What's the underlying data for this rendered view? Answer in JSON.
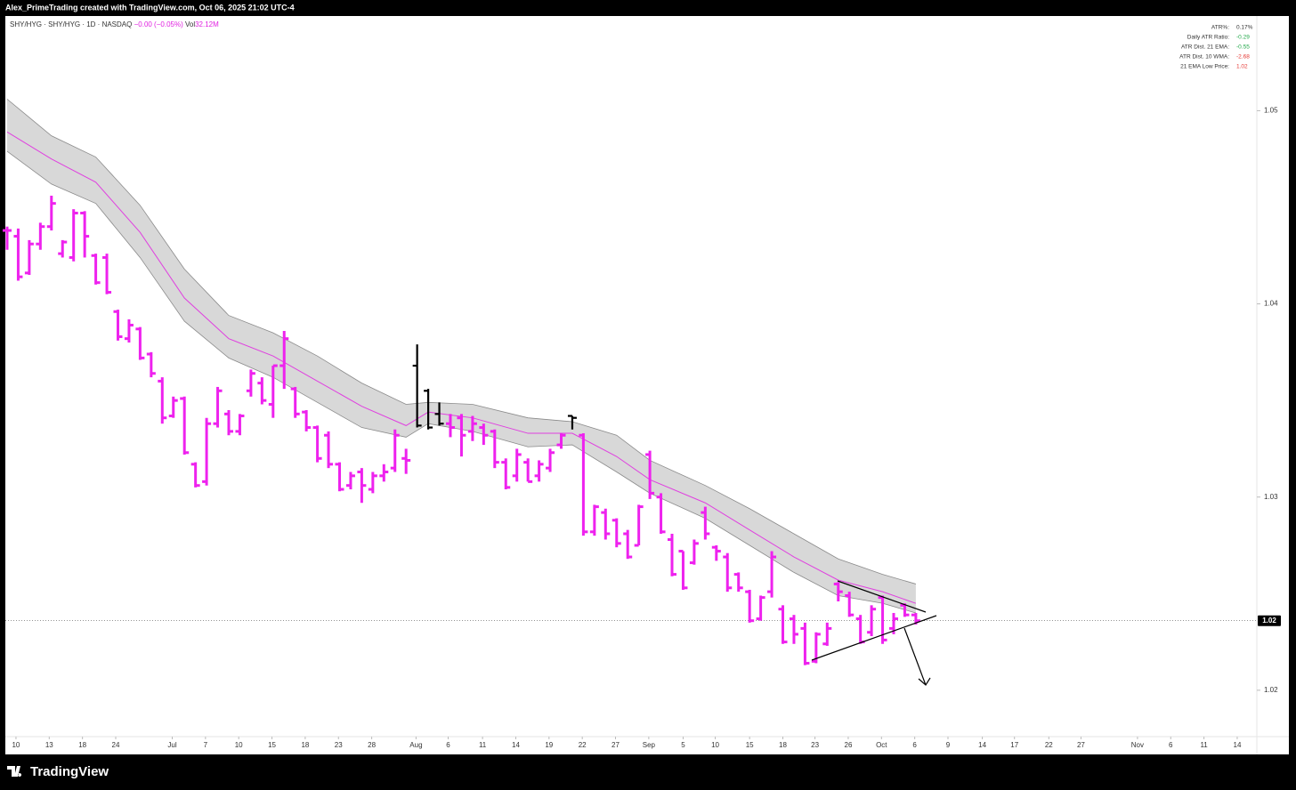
{
  "credit": "Alex_PrimeTrading created with TradingView.com, Oct 06, 2025 21:02 UTC-4",
  "brand": "TradingView",
  "chart_data": {
    "type": "ohlc",
    "symbol": "SHY/HYG · SHY/HYG · 1D · NASDAQ",
    "change": "−0.00 (−0.05%)",
    "volume_label": "Vol",
    "volume": "32.12M",
    "x": [
      0,
      1,
      2,
      3,
      4,
      5,
      6,
      7,
      8,
      9,
      10,
      11,
      12,
      13,
      14,
      15,
      16,
      17,
      18,
      19,
      20,
      21,
      22,
      23,
      24,
      25,
      26,
      27,
      28,
      29,
      30,
      31,
      32,
      33,
      34,
      35,
      36,
      37,
      38,
      39,
      40,
      41,
      42,
      43,
      44,
      45,
      46,
      47,
      48,
      49,
      50,
      51,
      52,
      53,
      54,
      55,
      56,
      57,
      58,
      59,
      60,
      61,
      62,
      63,
      64,
      65,
      66,
      67,
      68,
      69,
      70,
      71,
      72,
      73,
      74,
      75,
      76,
      77,
      78,
      79,
      80,
      81,
      82
    ],
    "open": [
      1.0438,
      1.0435,
      1.0416,
      1.0431,
      1.044,
      1.0426,
      1.0424,
      1.0447,
      1.0425,
      1.0424,
      1.0396,
      1.0382,
      1.0387,
      1.0374,
      1.036,
      1.0342,
      1.0351,
      1.0317,
      1.0308,
      1.0338,
      1.0343,
      1.0334,
      1.0355,
      1.0359,
      1.0348,
      1.0368,
      1.0356,
      1.0344,
      1.0336,
      1.0332,
      1.0317,
      1.0306,
      1.0313,
      1.0304,
      1.0311,
      1.0315,
      1.032,
      1.0368,
      1.0355,
      1.0343,
      1.0338,
      1.0341,
      1.0334,
      1.0336,
      1.0334,
      1.0318,
      1.0311,
      1.0318,
      1.0311,
      1.0315,
      1.0327,
      1.0342,
      1.0332,
      1.0282,
      1.0292,
      1.0288,
      1.0281,
      1.0275,
      1.0322,
      1.03,
      1.0278,
      1.0272,
      1.0266,
      1.0292,
      1.0274,
      1.0269,
      1.026,
      1.0251,
      1.0237,
      1.0251,
      1.0242,
      1.0237,
      1.0232,
      1.0215,
      1.0224,
      1.0255,
      1.0249,
      1.0237,
      1.023,
      1.0248,
      1.0232,
      1.0244,
      1.0239
    ],
    "high": [
      1.044,
      1.0439,
      1.0433,
      1.0442,
      1.0456,
      1.0433,
      1.0449,
      1.0448,
      1.0426,
      1.0426,
      1.0397,
      1.0392,
      1.0388,
      1.0375,
      1.0362,
      1.0352,
      1.0352,
      1.0318,
      1.0341,
      1.0357,
      1.0345,
      1.0343,
      1.0366,
      1.0362,
      1.0368,
      1.0386,
      1.0357,
      1.0345,
      1.0337,
      1.0334,
      1.0318,
      1.0313,
      1.0315,
      1.0313,
      1.0317,
      1.0335,
      1.0325,
      1.0379,
      1.0356,
      1.0349,
      1.0343,
      1.0343,
      1.0342,
      1.0338,
      1.0335,
      1.032,
      1.0325,
      1.032,
      1.0319,
      1.0325,
      1.0333,
      1.0342,
      1.0333,
      1.0296,
      1.0294,
      1.0289,
      1.0283,
      1.0296,
      1.0324,
      1.0302,
      1.0281,
      1.0272,
      1.0278,
      1.0295,
      1.0275,
      1.0271,
      1.0261,
      1.0252,
      1.0249,
      1.0272,
      1.0244,
      1.0239,
      1.0235,
      1.023,
      1.0235,
      1.0256,
      1.0251,
      1.0239,
      1.0244,
      1.0249,
      1.024,
      1.0245,
      1.024
    ],
    "low": [
      1.0428,
      1.0412,
      1.0415,
      1.0428,
      1.0438,
      1.0424,
      1.0422,
      1.0424,
      1.041,
      1.0405,
      1.0381,
      1.038,
      1.0371,
      1.0362,
      1.0338,
      1.0341,
      1.0322,
      1.0305,
      1.0306,
      1.0336,
      1.0332,
      1.0332,
      1.0352,
      1.0348,
      1.0341,
      1.0356,
      1.0341,
      1.0334,
      1.0318,
      1.0315,
      1.0303,
      1.0304,
      1.0297,
      1.0302,
      1.0308,
      1.0313,
      1.0312,
      1.0336,
      1.0335,
      1.0337,
      1.0331,
      1.0321,
      1.0329,
      1.0327,
      1.0315,
      1.0304,
      1.0308,
      1.0308,
      1.0308,
      1.0313,
      1.0325,
      1.0335,
      1.028,
      1.028,
      1.0278,
      1.0274,
      1.0268,
      1.0275,
      1.0299,
      1.0281,
      1.0259,
      1.0252,
      1.0265,
      1.0278,
      1.0267,
      1.0251,
      1.0251,
      1.0235,
      1.0236,
      1.0248,
      1.0224,
      1.0224,
      1.0213,
      1.0214,
      1.0223,
      1.0246,
      1.0238,
      1.0224,
      1.0228,
      1.0224,
      1.0229,
      1.0238,
      1.0234
    ],
    "close": [
      1.0438,
      1.0414,
      1.0431,
      1.044,
      1.0452,
      1.0432,
      1.0447,
      1.0435,
      1.0411,
      1.0406,
      1.0383,
      1.0389,
      1.0372,
      1.0364,
      1.0341,
      1.035,
      1.0323,
      1.0306,
      1.0338,
      1.0355,
      1.0334,
      1.0342,
      1.0364,
      1.035,
      1.0368,
      1.0382,
      1.0343,
      1.0336,
      1.032,
      1.0317,
      1.0304,
      1.0311,
      1.0306,
      1.0311,
      1.0313,
      1.0332,
      1.0319,
      1.0337,
      1.0336,
      1.0338,
      1.0336,
      1.0332,
      1.0338,
      1.0332,
      1.0318,
      1.0305,
      1.0322,
      1.0308,
      1.0317,
      1.0323,
      1.0332,
      1.0341,
      1.0282,
      1.0295,
      1.0281,
      1.0276,
      1.0269,
      1.0295,
      1.0302,
      1.0282,
      1.026,
      1.0253,
      1.0276,
      1.0281,
      1.0272,
      1.0253,
      1.0253,
      1.0236,
      1.0248,
      1.0269,
      1.0225,
      1.0229,
      1.0214,
      1.0229,
      1.0232,
      1.0251,
      1.0239,
      1.0225,
      1.0242,
      1.0226,
      1.0237,
      1.0239,
      1.0236
    ],
    "colors": [
      "#ee22ee",
      "#ee22ee",
      "#ee22ee",
      "#ee22ee",
      "#ee22ee",
      "#ee22ee",
      "#ee22ee",
      "#ee22ee",
      "#ee22ee",
      "#ee22ee",
      "#ee22ee",
      "#ee22ee",
      "#ee22ee",
      "#ee22ee",
      "#ee22ee",
      "#ee22ee",
      "#ee22ee",
      "#ee22ee",
      "#ee22ee",
      "#ee22ee",
      "#ee22ee",
      "#ee22ee",
      "#ee22ee",
      "#ee22ee",
      "#ee22ee",
      "#ee22ee",
      "#ee22ee",
      "#ee22ee",
      "#ee22ee",
      "#ee22ee",
      "#ee22ee",
      "#ee22ee",
      "#ee22ee",
      "#ee22ee",
      "#ee22ee",
      "#ee22ee",
      "#ee22ee",
      "#000000",
      "#000000",
      "#000000",
      "#ee22ee",
      "#ee22ee",
      "#ee22ee",
      "#ee22ee",
      "#ee22ee",
      "#ee22ee",
      "#ee22ee",
      "#ee22ee",
      "#ee22ee",
      "#ee22ee",
      "#ee22ee",
      "#000000",
      "#ee22ee",
      "#ee22ee",
      "#ee22ee",
      "#ee22ee",
      "#ee22ee",
      "#ee22ee",
      "#ee22ee",
      "#ee22ee",
      "#ee22ee",
      "#ee22ee",
      "#ee22ee",
      "#ee22ee",
      "#ee22ee",
      "#ee22ee",
      "#ee22ee",
      "#ee22ee",
      "#ee22ee",
      "#ee22ee",
      "#ee22ee",
      "#ee22ee",
      "#ee22ee",
      "#ee22ee",
      "#ee22ee",
      "#ee22ee",
      "#ee22ee",
      "#ee22ee",
      "#ee22ee",
      "#ee22ee",
      "#ee22ee",
      "#ee22ee",
      "#ee22ee"
    ],
    "band": {
      "x": [
        0,
        4,
        8,
        12,
        16,
        20,
        24,
        28,
        32,
        36,
        38,
        42,
        47,
        51,
        55,
        58,
        63,
        67,
        71,
        75,
        79,
        82
      ],
      "ema": [
        1.0489,
        1.0475,
        1.0463,
        1.0437,
        1.0403,
        1.0382,
        1.0373,
        1.036,
        1.0347,
        1.0337,
        1.0344,
        1.0341,
        1.0333,
        1.0333,
        1.0321,
        1.0309,
        1.0297,
        1.0283,
        1.0269,
        1.0257,
        1.0251,
        1.0245
      ],
      "upper": [
        1.0506,
        1.0487,
        1.0476,
        1.0451,
        1.0418,
        1.0394,
        1.0385,
        1.0373,
        1.0359,
        1.0348,
        1.0349,
        1.0348,
        1.0341,
        1.0339,
        1.0332,
        1.0319,
        1.0306,
        1.0294,
        1.0281,
        1.0268,
        1.026,
        1.0255
      ],
      "lower": [
        1.0479,
        1.0462,
        1.0452,
        1.0424,
        1.0391,
        1.0372,
        1.0362,
        1.0349,
        1.0336,
        1.0331,
        1.0338,
        1.0334,
        1.0326,
        1.0327,
        1.0313,
        1.0302,
        1.0289,
        1.0275,
        1.0261,
        1.0249,
        1.0245,
        1.024
      ],
      "ema_color": "#e040e0",
      "fill": "#d8d8d8",
      "edge": "#8a8a8a"
    },
    "xlim": [
      -0.16,
      112.77
    ],
    "ylim": [
      1.0176,
      1.0549
    ],
    "xticks": [
      {
        "value": 0.8,
        "label": "10"
      },
      {
        "value": 3.8,
        "label": "13"
      },
      {
        "value": 6.8,
        "label": "18"
      },
      {
        "value": 9.8,
        "label": "24"
      },
      {
        "value": 14.9,
        "label": "Jul"
      },
      {
        "value": 17.9,
        "label": "7"
      },
      {
        "value": 20.9,
        "label": "10"
      },
      {
        "value": 23.9,
        "label": "15"
      },
      {
        "value": 26.9,
        "label": "18"
      },
      {
        "value": 29.9,
        "label": "23"
      },
      {
        "value": 32.9,
        "label": "28"
      },
      {
        "value": 36.9,
        "label": "Aug"
      },
      {
        "value": 39.8,
        "label": "6"
      },
      {
        "value": 42.9,
        "label": "11"
      },
      {
        "value": 45.9,
        "label": "14"
      },
      {
        "value": 48.9,
        "label": "19"
      },
      {
        "value": 51.9,
        "label": "22"
      },
      {
        "value": 54.9,
        "label": "27"
      },
      {
        "value": 57.9,
        "label": "Sep"
      },
      {
        "value": 61,
        "label": "5"
      },
      {
        "value": 63.9,
        "label": "10"
      },
      {
        "value": 67,
        "label": "15"
      },
      {
        "value": 70,
        "label": "18"
      },
      {
        "value": 72.9,
        "label": "23"
      },
      {
        "value": 75.9,
        "label": "26"
      },
      {
        "value": 78.9,
        "label": "Oct"
      },
      {
        "value": 81.9,
        "label": "6"
      },
      {
        "value": 84.9,
        "label": "9"
      },
      {
        "value": 88,
        "label": "14"
      },
      {
        "value": 90.9,
        "label": "17"
      },
      {
        "value": 94,
        "label": "22"
      },
      {
        "value": 96.9,
        "label": "27"
      },
      {
        "value": 102,
        "label": "Nov"
      },
      {
        "value": 105,
        "label": "6"
      },
      {
        "value": 108,
        "label": "11"
      },
      {
        "value": 111,
        "label": "14"
      }
    ],
    "yticks": [
      1.02,
      1.03,
      1.04,
      1.05
    ],
    "price_line": {
      "value": 1.0236,
      "label": "1.02"
    },
    "info_table": [
      {
        "label": "ATR%:",
        "value": "0.17%",
        "color": "#333333"
      },
      {
        "label": "Daily ATR Ratio:",
        "value": "-0.29",
        "color": "#22a84a"
      },
      {
        "label": "ATR Dist. 21 EMA:",
        "value": "-0.55",
        "color": "#22a84a"
      },
      {
        "label": "ATR Dist. 10 WMA:",
        "value": "-2.68",
        "color": "#e53935"
      },
      {
        "label": "21 EMA Low Price:",
        "value": "1.02",
        "color": "#e53935"
      }
    ]
  }
}
